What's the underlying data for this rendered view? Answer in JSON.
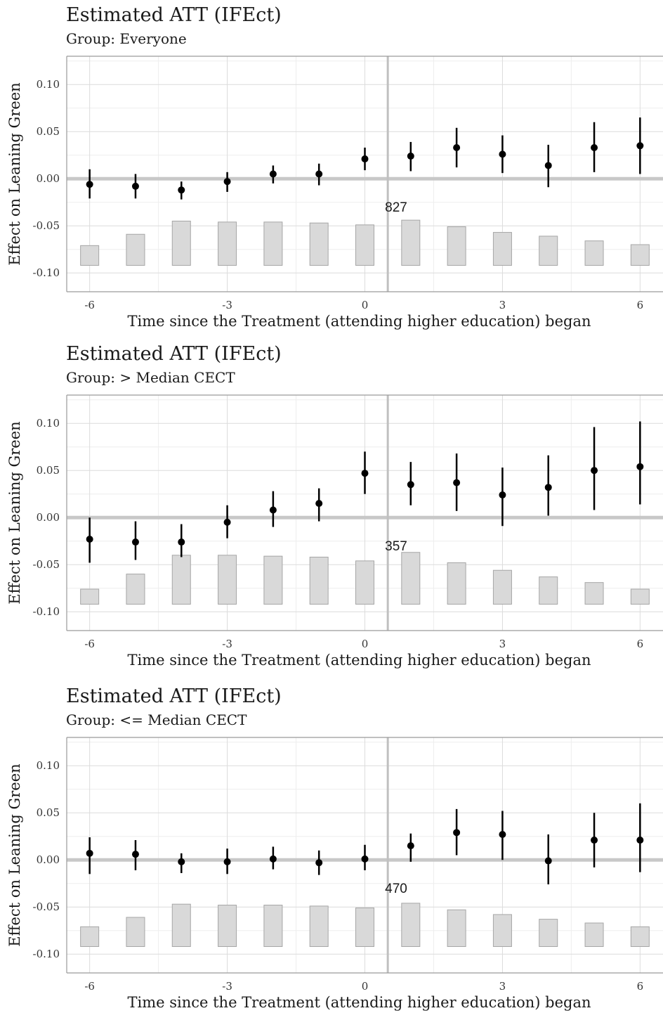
{
  "chart_data": [
    {
      "type": "scatter",
      "title": "Estimated ATT (IFEct)",
      "subtitle": "Group: Everyone",
      "xlabel": "Time since the Treatment (attending higher education) began",
      "ylabel": "Effect on Leaning Green",
      "x_ticks": [
        "-6",
        "-3",
        "0",
        "3",
        "6"
      ],
      "y_ticks": [
        "0.10",
        "0.05",
        "0.00",
        "-0.05",
        "-0.10"
      ],
      "ylim": [
        -0.12,
        0.13
      ],
      "xlim": [
        -6.5,
        6.5
      ],
      "count_label": "827",
      "grid": true,
      "x": [
        -6,
        -5,
        -4,
        -3,
        -2,
        -1,
        0,
        1,
        2,
        3,
        4,
        5,
        6
      ],
      "estimate": [
        -0.006,
        -0.008,
        -0.012,
        -0.003,
        0.005,
        0.005,
        0.021,
        0.024,
        0.033,
        0.026,
        0.014,
        0.033,
        0.035
      ],
      "ci_lower": [
        -0.021,
        -0.021,
        -0.022,
        -0.014,
        -0.005,
        -0.007,
        0.009,
        0.008,
        0.012,
        0.006,
        -0.009,
        0.007,
        0.005
      ],
      "ci_upper": [
        0.01,
        0.005,
        -0.003,
        0.007,
        0.014,
        0.016,
        0.033,
        0.039,
        0.054,
        0.046,
        0.036,
        0.06,
        0.065
      ],
      "bars": [
        0.021,
        0.033,
        0.047,
        0.046,
        0.046,
        0.045,
        0.043,
        0.048,
        0.041,
        0.035,
        0.031,
        0.026,
        0.022
      ]
    },
    {
      "type": "scatter",
      "title": "Estimated ATT (IFEct)",
      "subtitle": "Group: > Median CECT",
      "xlabel": "Time since the Treatment (attending higher education) began",
      "ylabel": "Effect on Leaning Green",
      "x_ticks": [
        "-6",
        "-3",
        "0",
        "3",
        "6"
      ],
      "y_ticks": [
        "0.10",
        "0.05",
        "0.00",
        "-0.05",
        "-0.10"
      ],
      "ylim": [
        -0.12,
        0.13
      ],
      "xlim": [
        -6.5,
        6.5
      ],
      "count_label": "357",
      "grid": true,
      "x": [
        -6,
        -5,
        -4,
        -3,
        -2,
        -1,
        0,
        1,
        2,
        3,
        4,
        5,
        6
      ],
      "estimate": [
        -0.023,
        -0.026,
        -0.026,
        -0.005,
        0.008,
        0.015,
        0.047,
        0.035,
        0.037,
        0.024,
        0.032,
        0.05,
        0.054
      ],
      "ci_lower": [
        -0.048,
        -0.045,
        -0.042,
        -0.022,
        -0.01,
        -0.004,
        0.025,
        0.013,
        0.007,
        -0.009,
        0.002,
        0.008,
        0.014
      ],
      "ci_upper": [
        0.0,
        -0.004,
        -0.007,
        0.013,
        0.028,
        0.031,
        0.07,
        0.059,
        0.068,
        0.053,
        0.066,
        0.096,
        0.102
      ],
      "bars": [
        0.016,
        0.032,
        0.052,
        0.052,
        0.051,
        0.05,
        0.046,
        0.055,
        0.044,
        0.036,
        0.029,
        0.023,
        0.016
      ]
    },
    {
      "type": "scatter",
      "title": "Estimated ATT (IFEct)",
      "subtitle": "Group: <= Median CECT",
      "xlabel": "Time since the Treatment (attending higher education) began",
      "ylabel": "Effect on Leaning Green",
      "x_ticks": [
        "-6",
        "-3",
        "0",
        "3",
        "6"
      ],
      "y_ticks": [
        "0.10",
        "0.05",
        "0.00",
        "-0.05",
        "-0.10"
      ],
      "ylim": [
        -0.12,
        0.13
      ],
      "xlim": [
        -6.5,
        6.5
      ],
      "count_label": "470",
      "grid": true,
      "x": [
        -6,
        -5,
        -4,
        -3,
        -2,
        -1,
        0,
        1,
        2,
        3,
        4,
        5,
        6
      ],
      "estimate": [
        0.007,
        0.006,
        -0.002,
        -0.002,
        0.001,
        -0.003,
        0.001,
        0.015,
        0.029,
        0.027,
        -0.001,
        0.021,
        0.021
      ],
      "ci_lower": [
        -0.015,
        -0.011,
        -0.014,
        -0.015,
        -0.01,
        -0.016,
        -0.011,
        -0.002,
        0.005,
        0.0,
        -0.026,
        -0.008,
        -0.013
      ],
      "ci_upper": [
        0.024,
        0.021,
        0.007,
        0.012,
        0.014,
        0.01,
        0.016,
        0.028,
        0.054,
        0.052,
        0.027,
        0.05,
        0.06
      ],
      "bars": [
        0.021,
        0.031,
        0.045,
        0.044,
        0.044,
        0.043,
        0.041,
        0.046,
        0.039,
        0.034,
        0.029,
        0.025,
        0.021
      ]
    }
  ],
  "colors": {
    "point": "#000000",
    "bar_fill": "#d9d9d9",
    "bar_stroke": "#a6a6a6",
    "grid_major": "#dcdcdc",
    "grid_minor": "#eeeeee",
    "zero_line": "#c8c8c8",
    "treatment_line": "#c0c0c0",
    "frame": "#9a9a9a"
  }
}
